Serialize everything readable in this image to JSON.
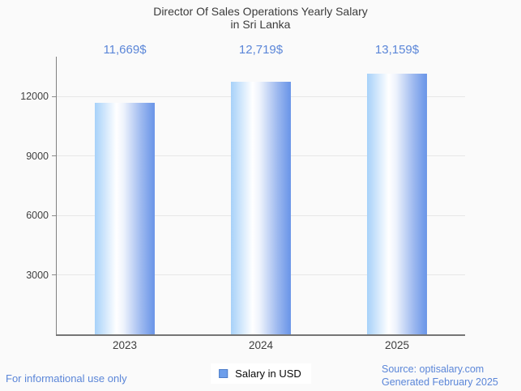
{
  "title": {
    "line1": "Director Of Sales Operations Yearly Salary",
    "line2": "in Sri Lanka"
  },
  "chart_data": {
    "type": "bar",
    "title": "Director Of Sales Operations Yearly Salary in Sri Lanka",
    "categories": [
      "2023",
      "2024",
      "2025"
    ],
    "series": [
      {
        "name": "Salary in USD",
        "values": [
          11669,
          12719,
          13159
        ]
      }
    ],
    "value_labels": [
      "11,669$",
      "12,719$",
      "13,159$"
    ],
    "xlabel": "",
    "ylabel": "",
    "ylim": [
      0,
      14000
    ],
    "yticks": [
      3000,
      6000,
      9000,
      12000
    ],
    "grid": true,
    "legend_position": "bottom"
  },
  "legend": {
    "label": "Salary in USD",
    "swatch_color": "#6d9eeb"
  },
  "footer": {
    "left": "For informational use only",
    "source": "Source: optisalary.com",
    "generated": "Generated February 2025"
  },
  "colors": {
    "background": "#fafafa",
    "title_text": "#3b3b3b",
    "accent_blue_text": "#5b86d8",
    "bar_gradient_left": "#a7d1f9",
    "bar_gradient_mid": "#ffffff",
    "bar_gradient_right": "#6d97e8",
    "legend_swatch": "#6d9eeb",
    "gridline": "#e6e6e6",
    "axis_line": "#808080",
    "tick_text": "#404040"
  }
}
